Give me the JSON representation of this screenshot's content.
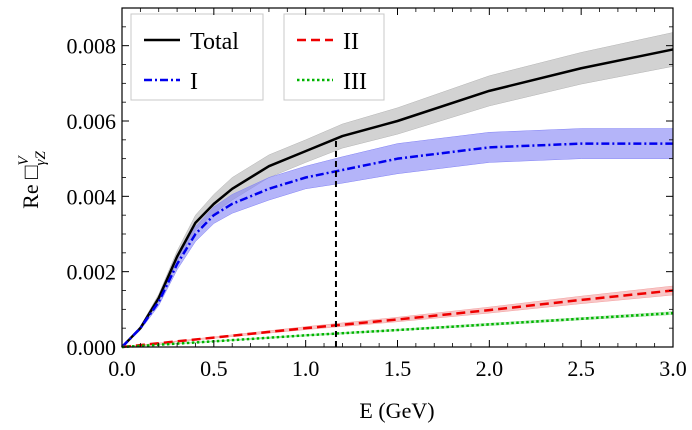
{
  "chart_data": {
    "type": "line",
    "xlabel": "E (GeV)",
    "ylabel": "Re □",
    "ylabel_sup": "V",
    "ylabel_sub": "γZ",
    "xlim": [
      0.0,
      3.0
    ],
    "ylim": [
      0.0,
      0.009
    ],
    "x_ticks": [
      "0.0",
      "0.5",
      "1.0",
      "1.5",
      "2.0",
      "2.5",
      "3.0"
    ],
    "y_ticks": [
      "0.000",
      "0.002",
      "0.004",
      "0.006",
      "0.008"
    ],
    "x_tick_values": [
      0.0,
      0.5,
      1.0,
      1.5,
      2.0,
      2.5,
      3.0
    ],
    "y_tick_values": [
      0.0,
      0.002,
      0.004,
      0.006,
      0.008
    ],
    "vertical_line_x": 1.165,
    "series": [
      {
        "name": "Total",
        "color": "#000000",
        "band_color": "#b4b4b4",
        "style": "solid",
        "x": [
          0,
          0.1,
          0.2,
          0.3,
          0.4,
          0.5,
          0.6,
          0.8,
          1.0,
          1.2,
          1.5,
          2.0,
          2.5,
          3.0
        ],
        "y": [
          0,
          0.0005,
          0.0013,
          0.0024,
          0.0033,
          0.0038,
          0.0042,
          0.0048,
          0.0052,
          0.0056,
          0.006,
          0.0068,
          0.0074,
          0.0079
        ],
        "err": [
          0,
          5e-05,
          0.0001,
          0.00015,
          0.0002,
          0.00025,
          0.0003,
          0.0003,
          0.0003,
          0.00032,
          0.00035,
          0.0004,
          0.00042,
          0.00045
        ]
      },
      {
        "name": "I",
        "color": "#0000ee",
        "band_color": "#8282f5",
        "style": "dashdot",
        "x": [
          0,
          0.1,
          0.2,
          0.3,
          0.4,
          0.5,
          0.6,
          0.8,
          1.0,
          1.2,
          1.5,
          2.0,
          2.5,
          3.0
        ],
        "y": [
          0,
          0.0005,
          0.0012,
          0.0022,
          0.003,
          0.0035,
          0.0038,
          0.0042,
          0.0045,
          0.0047,
          0.005,
          0.0053,
          0.0054,
          0.0054
        ],
        "err": [
          0,
          5e-05,
          0.0001,
          0.00015,
          0.0002,
          0.00022,
          0.00025,
          0.0003,
          0.0003,
          0.00035,
          0.0004,
          0.0004,
          0.0004,
          0.0004
        ]
      },
      {
        "name": "II",
        "color": "#ee0000",
        "band_color": "#f4a0a0",
        "style": "dashed",
        "x": [
          0,
          0.5,
          1.0,
          1.5,
          2.0,
          2.5,
          3.0
        ],
        "y": [
          0,
          0.00025,
          0.0005,
          0.00073,
          0.00098,
          0.00125,
          0.0015
        ],
        "err": [
          0,
          2e-05,
          4e-05,
          6e-05,
          8e-05,
          0.0001,
          0.00012
        ]
      },
      {
        "name": "III",
        "color": "#00b400",
        "band_color": "#a0e0a0",
        "style": "dotted",
        "x": [
          0,
          0.5,
          1.0,
          1.5,
          2.0,
          2.5,
          3.0
        ],
        "y": [
          0,
          0.00015,
          0.00031,
          0.00045,
          0.0006,
          0.00075,
          0.0009
        ],
        "err": [
          0,
          1e-05,
          2e-05,
          2e-05,
          3e-05,
          3e-05,
          4e-05
        ]
      }
    ],
    "legend": {
      "groups": [
        {
          "entries": [
            "Total",
            "I"
          ]
        },
        {
          "entries": [
            "II",
            "III"
          ]
        }
      ],
      "location": "top-left"
    }
  }
}
